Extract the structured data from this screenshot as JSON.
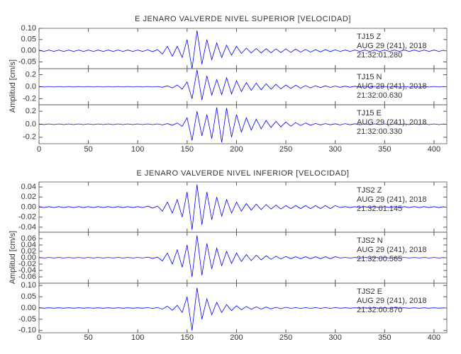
{
  "chart_data": [
    {
      "type": "line",
      "title": "E JENARO VALVERDE NIVEL SUPERIOR [VELOCIDAD]",
      "ylabel": "Amplitud [cm/s]",
      "color": "#0000ff",
      "xlim": [
        0,
        413
      ],
      "xticks": [
        0,
        50,
        100,
        150,
        200,
        250,
        300,
        350,
        400
      ],
      "x": [
        0,
        5,
        10,
        15,
        20,
        25,
        30,
        35,
        40,
        45,
        50,
        55,
        60,
        65,
        70,
        75,
        80,
        85,
        90,
        95,
        100,
        105,
        110,
        115,
        120,
        125,
        130,
        135,
        140,
        145,
        150,
        155,
        160,
        165,
        170,
        175,
        180,
        185,
        190,
        195,
        200,
        205,
        210,
        215,
        220,
        225,
        230,
        235,
        240,
        245,
        250,
        255,
        260,
        265,
        270,
        275,
        280,
        285,
        290,
        295,
        300,
        305,
        310,
        315,
        320,
        325,
        330,
        335,
        340,
        345,
        350,
        355,
        360,
        365,
        370,
        375,
        380,
        385,
        390,
        395,
        400,
        405,
        410
      ],
      "panels": [
        {
          "station": "TJ15   Z",
          "date": "AUG 29 (241), 2018",
          "time": "21:32:01.280",
          "ylim": [
            -0.08,
            0.1
          ],
          "yticks": [
            {
              "value": 0.1,
              "label": "0.10"
            },
            {
              "value": 0.05,
              "label": "0.05"
            },
            {
              "value": 0,
              "label": "0.00"
            },
            {
              "value": -0.05,
              "label": "-0.05"
            }
          ],
          "values": [
            0.003,
            -0.003,
            0.003,
            -0.003,
            0.003,
            -0.003,
            0.003,
            -0.003,
            0.003,
            -0.003,
            0.003,
            -0.003,
            0.003,
            -0.003,
            0.003,
            -0.003,
            0.003,
            -0.003,
            0.003,
            -0.003,
            0.003,
            -0.003,
            0.004,
            -0.004,
            0.005,
            -0.015,
            0.02,
            -0.025,
            0.02,
            -0.03,
            0.05,
            -0.08,
            0.09,
            -0.06,
            0.05,
            -0.04,
            0.035,
            -0.03,
            0.025,
            -0.02,
            0.02,
            -0.012,
            0.012,
            -0.01,
            0.01,
            -0.01,
            0.009,
            -0.009,
            0.008,
            -0.008,
            0.008,
            -0.007,
            0.007,
            -0.006,
            0.006,
            -0.006,
            0.005,
            -0.005,
            0.005,
            -0.004,
            0.004,
            -0.003,
            0.003,
            -0.003,
            0.003,
            -0.003,
            0.003,
            -0.003,
            0.003,
            -0.003,
            0.003,
            -0.003,
            0.003,
            -0.003,
            0.003,
            -0.003,
            0.003,
            -0.003,
            0.003,
            -0.003,
            0.003,
            -0.003,
            0.003
          ]
        },
        {
          "station": "TJ15   N",
          "date": "AUG 29 (241), 2018",
          "time": "21:32:00.630",
          "ylim": [
            -0.3,
            0.3
          ],
          "yticks": [
            0.2,
            {
              "value": 0,
              "label": "0.0"
            },
            -0.2
          ],
          "values": [
            0.005,
            -0.005,
            0.005,
            -0.005,
            0.005,
            -0.005,
            0.005,
            -0.005,
            0.005,
            -0.005,
            0.005,
            -0.005,
            0.005,
            -0.005,
            0.005,
            -0.005,
            0.005,
            -0.005,
            0.005,
            -0.005,
            0.005,
            -0.005,
            0.005,
            -0.005,
            0.005,
            -0.01,
            0.015,
            -0.02,
            0.03,
            -0.04,
            0.08,
            -0.2,
            0.28,
            -0.22,
            0.18,
            -0.14,
            0.12,
            -0.13,
            0.15,
            -0.12,
            0.1,
            -0.08,
            0.07,
            -0.06,
            0.06,
            -0.05,
            0.05,
            -0.04,
            0.04,
            -0.035,
            0.03,
            -0.03,
            0.025,
            -0.025,
            0.02,
            -0.02,
            0.018,
            -0.015,
            0.015,
            -0.012,
            0.012,
            -0.01,
            0.01,
            -0.008,
            0.008,
            -0.008,
            0.007,
            -0.006,
            0.006,
            -0.005,
            0.005,
            -0.005,
            0.005,
            -0.005,
            0.005,
            -0.005,
            0.005,
            -0.005,
            0.005,
            -0.005,
            0.005,
            -0.005,
            0.005
          ]
        },
        {
          "station": "TJ15   E",
          "date": "AUG 29 (241), 2018",
          "time": "21:32:00.330",
          "ylim": [
            -0.3,
            0.3
          ],
          "yticks": [
            0.2,
            {
              "value": 0,
              "label": "0.0"
            },
            -0.2
          ],
          "values": [
            0.005,
            -0.005,
            0.005,
            -0.005,
            0.005,
            -0.005,
            0.005,
            -0.005,
            0.005,
            -0.005,
            0.005,
            -0.005,
            0.005,
            -0.005,
            0.005,
            -0.005,
            0.005,
            -0.005,
            0.005,
            -0.005,
            0.005,
            -0.005,
            0.005,
            -0.005,
            0.005,
            -0.01,
            0.01,
            -0.015,
            0.02,
            -0.03,
            0.1,
            -0.25,
            0.2,
            -0.18,
            0.15,
            -0.22,
            0.26,
            -0.28,
            0.25,
            -0.2,
            0.15,
            -0.12,
            0.1,
            -0.09,
            0.08,
            -0.07,
            0.06,
            -0.05,
            0.045,
            -0.04,
            0.035,
            -0.03,
            0.025,
            -0.02,
            0.02,
            -0.015,
            0.012,
            -0.01,
            0.01,
            -0.008,
            0.008,
            -0.01,
            0.01,
            -0.008,
            0.008,
            -0.008,
            0.007,
            -0.006,
            0.006,
            -0.005,
            0.005,
            -0.005,
            0.005,
            -0.005,
            0.005,
            -0.005,
            0.005,
            -0.005,
            0.005,
            -0.005,
            0.005,
            -0.005,
            0.005
          ]
        }
      ]
    },
    {
      "type": "line",
      "title": "E JENARO VALVERDE NIVEL INFERIOR [VELOCIDAD]",
      "ylabel": "Amplitud [cm/s]",
      "color": "#0000ff",
      "xlim": [
        0,
        413
      ],
      "xticks": [
        0,
        50,
        100,
        150,
        200,
        250,
        300,
        350,
        400
      ],
      "x": [
        0,
        5,
        10,
        15,
        20,
        25,
        30,
        35,
        40,
        45,
        50,
        55,
        60,
        65,
        70,
        75,
        80,
        85,
        90,
        95,
        100,
        105,
        110,
        115,
        120,
        125,
        130,
        135,
        140,
        145,
        150,
        155,
        160,
        165,
        170,
        175,
        180,
        185,
        190,
        195,
        200,
        205,
        210,
        215,
        220,
        225,
        230,
        235,
        240,
        245,
        250,
        255,
        260,
        265,
        270,
        275,
        280,
        285,
        290,
        295,
        300,
        305,
        310,
        315,
        320,
        325,
        330,
        335,
        340,
        345,
        350,
        355,
        360,
        365,
        370,
        375,
        380,
        385,
        390,
        395,
        400,
        405,
        410
      ],
      "panels": [
        {
          "station": "TJS2   Z",
          "date": "AUG 29 (241), 2018",
          "time": "21:32:01.145",
          "ylim": [
            -0.05,
            0.05
          ],
          "yticks": [
            0.04,
            0.02,
            {
              "value": 0,
              "label": "0.00"
            },
            -0.02,
            -0.04
          ],
          "values": [
            0.001,
            -0.001,
            0.001,
            -0.001,
            0.001,
            -0.001,
            0.001,
            -0.001,
            0.001,
            -0.001,
            0.001,
            -0.001,
            0.001,
            -0.001,
            0.001,
            -0.001,
            0.001,
            -0.001,
            0.001,
            -0.001,
            0.001,
            -0.001,
            0.002,
            -0.002,
            0.002,
            -0.008,
            0.01,
            -0.012,
            0.015,
            -0.02,
            0.03,
            -0.045,
            0.045,
            -0.035,
            0.03,
            -0.025,
            0.02,
            -0.018,
            0.015,
            -0.012,
            0.01,
            -0.008,
            0.007,
            -0.006,
            0.006,
            -0.005,
            0.005,
            -0.004,
            0.004,
            -0.004,
            0.003,
            -0.003,
            0.003,
            -0.003,
            0.003,
            -0.003,
            0.003,
            -0.003,
            0.003,
            -0.003,
            0.003,
            -0.001,
            0.001,
            -0.001,
            0.001,
            -0.001,
            0.001,
            -0.001,
            0.001,
            -0.001,
            0.001,
            -0.001,
            0.001,
            -0.001,
            0.001,
            -0.001,
            0.001,
            -0.001,
            0.001,
            -0.001,
            0.001,
            -0.001,
            0.001
          ]
        },
        {
          "station": "TJS2   N",
          "date": "AUG 29 (241), 2018",
          "time": "21:32:00.565",
          "ylim": [
            -0.08,
            0.08
          ],
          "yticks": [
            0.06,
            0.04,
            0.02,
            {
              "value": 0,
              "label": "0.00"
            },
            -0.02,
            -0.04,
            -0.06
          ],
          "values": [
            0.001,
            -0.001,
            0.001,
            -0.001,
            0.001,
            -0.001,
            0.001,
            -0.001,
            0.001,
            -0.001,
            0.001,
            -0.001,
            0.001,
            -0.001,
            0.001,
            -0.001,
            0.001,
            -0.001,
            0.001,
            -0.001,
            0.001,
            -0.001,
            0.002,
            -0.002,
            0.002,
            -0.01,
            0.015,
            -0.02,
            0.025,
            -0.03,
            0.04,
            -0.06,
            0.07,
            -0.055,
            0.045,
            -0.035,
            0.03,
            -0.025,
            0.02,
            -0.018,
            0.015,
            -0.012,
            0.01,
            -0.009,
            0.008,
            -0.007,
            0.006,
            -0.005,
            0.005,
            -0.004,
            0.004,
            -0.003,
            0.003,
            -0.003,
            0.003,
            -0.003,
            0.003,
            -0.003,
            0.003,
            -0.003,
            0.003,
            -0.001,
            0.001,
            -0.001,
            0.001,
            -0.001,
            0.001,
            -0.001,
            0.001,
            -0.001,
            0.001,
            -0.001,
            0.001,
            -0.001,
            0.001,
            -0.001,
            0.001,
            -0.001,
            0.001,
            -0.001,
            0.001,
            -0.001,
            0.001
          ]
        },
        {
          "station": "TJS2   E",
          "date": "AUG 29 (241), 2018",
          "time": "21:32:00.870",
          "ylim": [
            -0.11,
            0.11
          ],
          "yticks": [
            {
              "value": 0.1,
              "label": "0.10"
            },
            0.05,
            {
              "value": 0,
              "label": "0.00"
            },
            -0.05,
            {
              "value": -0.1,
              "label": "-0.10"
            }
          ],
          "values": [
            0.001,
            -0.001,
            0.001,
            -0.001,
            0.001,
            -0.001,
            0.001,
            -0.001,
            0.001,
            -0.001,
            0.001,
            -0.001,
            0.001,
            -0.001,
            0.001,
            -0.001,
            0.001,
            -0.001,
            0.001,
            -0.001,
            0.001,
            -0.001,
            0.002,
            -0.002,
            0.002,
            -0.005,
            0.008,
            -0.01,
            0.012,
            -0.02,
            0.05,
            -0.1,
            0.09,
            -0.05,
            0.04,
            -0.03,
            0.025,
            -0.02,
            0.015,
            -0.012,
            0.01,
            -0.008,
            0.007,
            -0.006,
            0.005,
            -0.005,
            0.004,
            -0.004,
            0.003,
            -0.003,
            0.003,
            -0.002,
            0.002,
            -0.002,
            0.002,
            -0.002,
            0.002,
            -0.002,
            0.002,
            -0.002,
            0.002,
            -0.001,
            0.001,
            -0.001,
            0.001,
            -0.001,
            0.001,
            -0.001,
            0.001,
            -0.001,
            0.001,
            -0.001,
            0.001,
            -0.001,
            0.001,
            -0.001,
            0.001,
            -0.001,
            0.001,
            -0.001,
            0.001,
            -0.001,
            0.001
          ]
        }
      ]
    }
  ]
}
